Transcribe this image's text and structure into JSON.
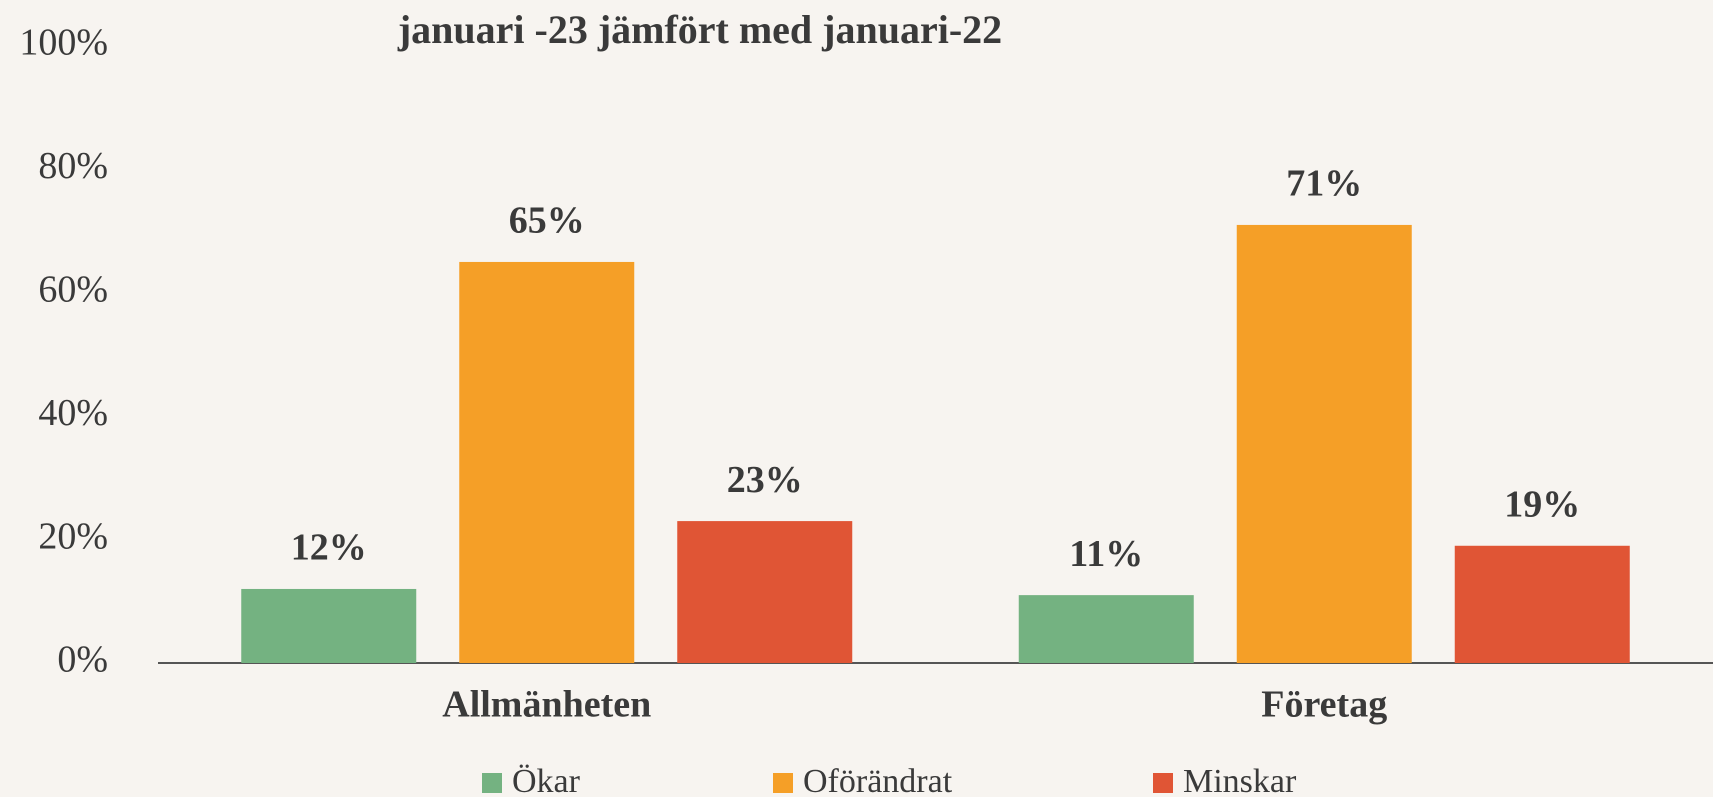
{
  "chart_data": {
    "type": "bar",
    "title": "januari -23 jämfört med januari-22",
    "categories": [
      "Allmänheten",
      "Företag"
    ],
    "series": [
      {
        "name": "Ökar",
        "color": "#74b281",
        "values": [
          12,
          11
        ],
        "value_labels": [
          "12%",
          "11%"
        ]
      },
      {
        "name": "Oförändrat",
        "color": "#f59f27",
        "values": [
          65,
          71
        ],
        "value_labels": [
          "65%",
          "71%"
        ]
      },
      {
        "name": "Minskar",
        "color": "#e05535",
        "values": [
          23,
          19
        ],
        "value_labels": [
          "23%",
          "19%"
        ]
      }
    ],
    "ylim": [
      0,
      100
    ],
    "yticks": [
      {
        "value": 0,
        "label": "0%"
      },
      {
        "value": 20,
        "label": "20%"
      },
      {
        "value": 40,
        "label": "40%"
      },
      {
        "value": 60,
        "label": "60%"
      },
      {
        "value": 80,
        "label": "80%"
      },
      {
        "value": 100,
        "label": "100%"
      }
    ],
    "grid": false,
    "legend": "bottom"
  }
}
